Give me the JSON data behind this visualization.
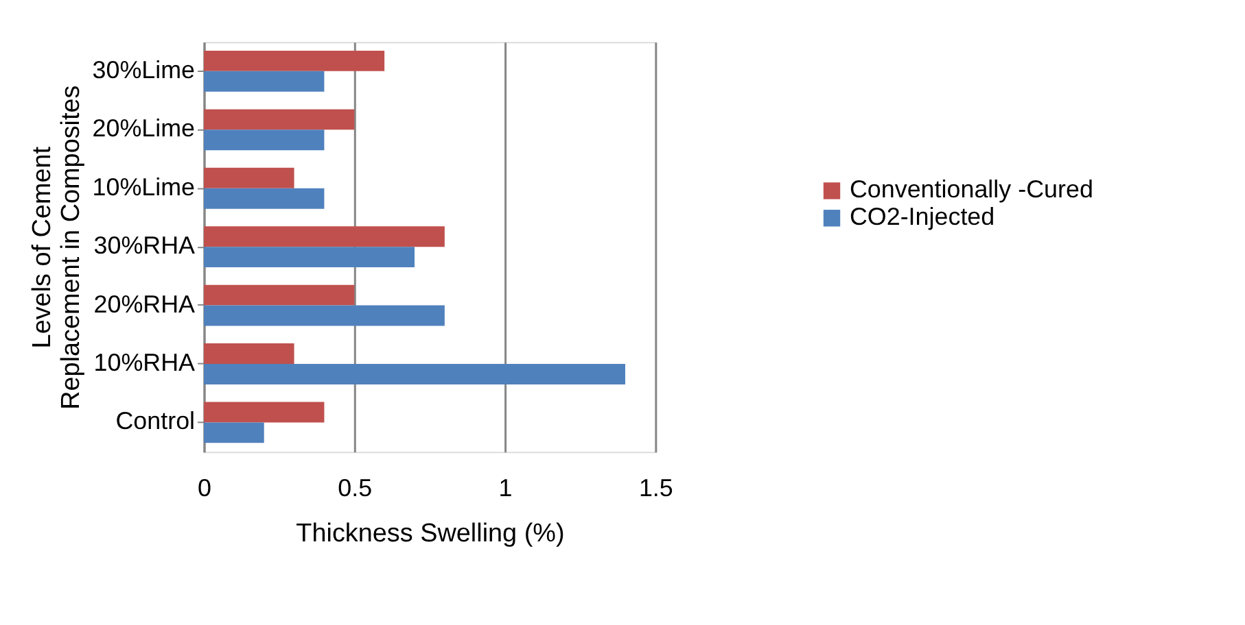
{
  "chart_data": {
    "type": "bar",
    "orientation": "horizontal",
    "xlabel": "Thickness Swelling (%)",
    "ylabel": "Levels of Cement\nReplacement in Composites",
    "categories": [
      "30%Lime",
      "20%Lime",
      "10%Lime",
      "30%RHA",
      "20%RHA",
      "10%RHA",
      "Control"
    ],
    "series": [
      {
        "name": "Conventionally -Cured",
        "color": "#c0504d",
        "values": [
          0.6,
          0.5,
          0.3,
          0.8,
          0.5,
          0.3,
          0.4
        ]
      },
      {
        "name": "CO2-Injected",
        "color": "#4f81bd",
        "values": [
          0.4,
          0.4,
          0.4,
          0.7,
          0.8,
          1.4,
          0.2
        ]
      }
    ],
    "xlim": [
      0,
      1.5
    ],
    "xticks": [
      0,
      0.5,
      1,
      1.5
    ],
    "grid": "x",
    "legend": "right"
  }
}
